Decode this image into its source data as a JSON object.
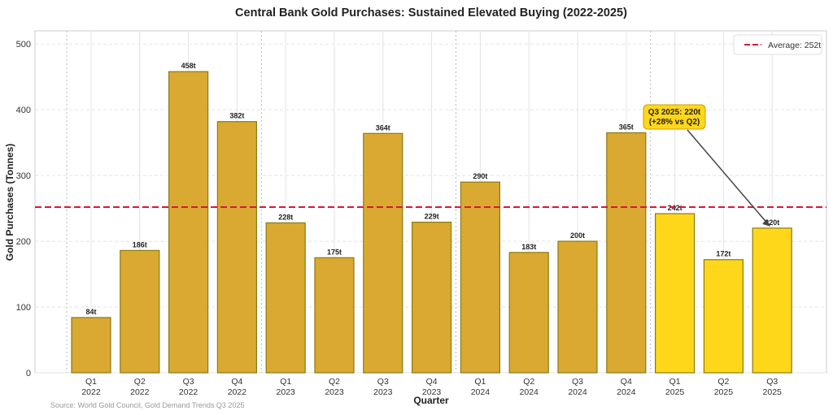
{
  "chart_data": {
    "type": "bar",
    "title": "Central Bank Gold Purchases: Sustained Elevated Buying (2022-2025)",
    "xlabel": "Quarter",
    "ylabel": "Gold Purchases (Tonnes)",
    "ylim": [
      0,
      520
    ],
    "yticks": [
      "0",
      "100",
      "200",
      "300",
      "400",
      "500"
    ],
    "grid": true,
    "legend_position": "top-right",
    "categories": [
      [
        "Q1",
        "2022"
      ],
      [
        "Q2",
        "2022"
      ],
      [
        "Q3",
        "2022"
      ],
      [
        "Q4",
        "2022"
      ],
      [
        "Q1",
        "2023"
      ],
      [
        "Q2",
        "2023"
      ],
      [
        "Q3",
        "2023"
      ],
      [
        "Q4",
        "2023"
      ],
      [
        "Q1",
        "2024"
      ],
      [
        "Q2",
        "2024"
      ],
      [
        "Q3",
        "2024"
      ],
      [
        "Q4",
        "2024"
      ],
      [
        "Q1",
        "2025"
      ],
      [
        "Q2",
        "2025"
      ],
      [
        "Q3",
        "2025"
      ]
    ],
    "values": [
      84,
      186,
      458,
      382,
      228,
      175,
      364,
      229,
      290,
      183,
      200,
      365,
      242,
      172,
      220
    ],
    "data_labels": [
      "84t",
      "186t",
      "458t",
      "382t",
      "228t",
      "175t",
      "364t",
      "229t",
      "290t",
      "183t",
      "200t",
      "365t",
      "242t",
      "172t",
      "220t"
    ],
    "highlight_year": "2025",
    "colors": {
      "bar": "#DAA932",
      "bar_edge": "#8B7A10",
      "highlight": "#FFD71A",
      "average_line": "#DC143C"
    },
    "average": {
      "value": 252,
      "label": "Average: 252t"
    },
    "annotation": {
      "text": [
        "Q3 2025: 220t",
        "(+28% vs Q2)"
      ],
      "target_index": 14,
      "target_value": 220
    },
    "source": "Source: World Gold Council, Gold Demand Trends Q3 2025"
  }
}
